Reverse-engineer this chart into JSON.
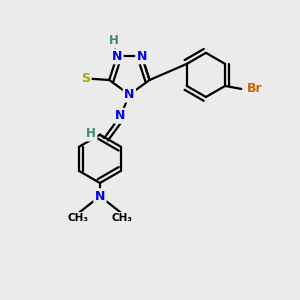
{
  "bg_color": "#ebebeb",
  "atom_colors": {
    "C": "#000000",
    "N": "#0000ee",
    "S": "#aaaa00",
    "H": "#3a8a7a",
    "Br": "#cc6600"
  },
  "bond_color": "#000000",
  "bond_width": 1.6
}
